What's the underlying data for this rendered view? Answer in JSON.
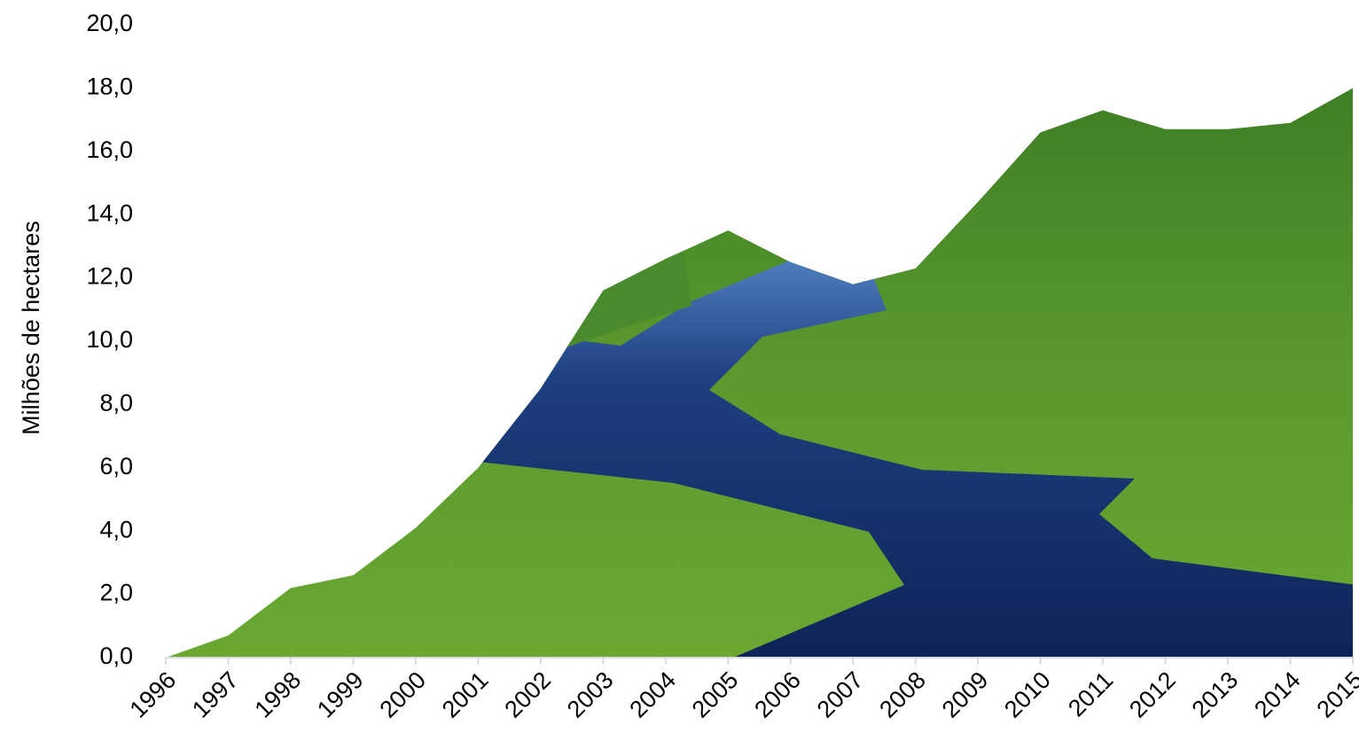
{
  "chart_data": {
    "type": "area",
    "y_label": "Milhões de hectares",
    "categories": [
      "1996",
      "1997",
      "1998",
      "1999",
      "2000",
      "2001",
      "2002",
      "2003",
      "2004",
      "2005",
      "2006",
      "2007",
      "2008",
      "2009",
      "2010",
      "2011",
      "2012",
      "2013",
      "2014",
      "2015"
    ],
    "values": [
      0,
      0.7,
      2.2,
      2.6,
      4.1,
      6.0,
      8.5,
      11.6,
      12.6,
      13.5,
      12.5,
      11.8,
      12.3,
      14.4,
      16.6,
      17.3,
      16.7,
      16.7,
      16.9,
      18.0
    ],
    "color": "#4f8f2c",
    "ylim": [
      0,
      20
    ],
    "yticks": [
      {
        "value": 0,
        "label": "0,0"
      },
      {
        "value": 2,
        "label": "2,0"
      },
      {
        "value": 4,
        "label": "4,0"
      },
      {
        "value": 6,
        "label": "6,0"
      },
      {
        "value": 8,
        "label": "8,0"
      },
      {
        "value": 10,
        "label": "10,0"
      },
      {
        "value": 12,
        "label": "12,0"
      },
      {
        "value": 14,
        "label": "14,0"
      },
      {
        "value": 16,
        "label": "16,0"
      },
      {
        "value": 18,
        "label": "18,0"
      },
      {
        "value": 20,
        "label": "20,0"
      }
    ]
  }
}
